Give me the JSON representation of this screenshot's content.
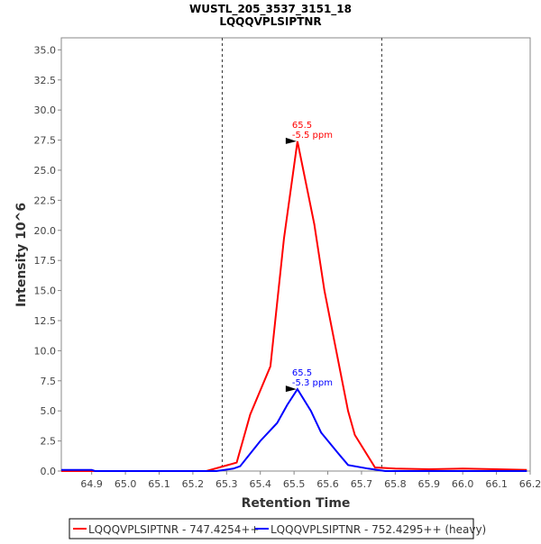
{
  "chart_data": {
    "type": "line",
    "title": "WUSTL_205_3537_3151_18",
    "subtitle": "LQQQVPLSIPTNR",
    "xlabel": "Retention Time",
    "ylabel": "Intensity 10^6",
    "xlim": [
      64.81,
      66.2
    ],
    "ylim": [
      0,
      36
    ],
    "xticks": [
      "64.9",
      "65.0",
      "65.1",
      "65.2",
      "65.3",
      "65.4",
      "65.5",
      "65.6",
      "65.7",
      "65.8",
      "65.9",
      "66.0",
      "66.1",
      "66.2"
    ],
    "yticks": [
      "0.0",
      "2.5",
      "5.0",
      "7.5",
      "10.0",
      "12.5",
      "15.0",
      "17.5",
      "20.0",
      "22.5",
      "25.0",
      "27.5",
      "30.0",
      "32.5",
      "35.0"
    ],
    "grid": false,
    "legend_position": "bottom",
    "boundaries": [
      65.287,
      65.76
    ],
    "series": [
      {
        "name": "LQQQVPLSIPTNR - 747.4254++",
        "color": "#ff0000",
        "x": [
          64.81,
          65.2,
          65.24,
          65.33,
          65.37,
          65.43,
          65.47,
          65.51,
          65.56,
          65.59,
          65.66,
          65.68,
          65.74,
          65.8,
          65.9,
          66.0,
          66.1,
          66.19
        ],
        "y": [
          0,
          0,
          0,
          0.7,
          4.7,
          8.7,
          19.3,
          27.4,
          20.5,
          15,
          5,
          3,
          0.3,
          0.2,
          0.15,
          0.2,
          0.15,
          0.1
        ],
        "annotation": {
          "x": 65.51,
          "y": 27.4,
          "rt": "65.5",
          "ppm": "-5.5 ppm"
        }
      },
      {
        "name": "LQQQVPLSIPTNR - 752.4295++ (heavy)",
        "color": "#0000ff",
        "x": [
          64.81,
          64.9,
          64.91,
          65.27,
          65.32,
          65.34,
          65.4,
          65.45,
          65.48,
          65.51,
          65.55,
          65.58,
          65.63,
          65.66,
          65.72,
          65.77,
          66.19
        ],
        "y": [
          0.1,
          0.1,
          0,
          0,
          0.2,
          0.4,
          2.5,
          4.0,
          5.5,
          6.8,
          5.0,
          3.2,
          1.5,
          0.5,
          0.2,
          0,
          0
        ],
        "annotation": {
          "x": 65.51,
          "y": 6.8,
          "rt": "65.5",
          "ppm": "-5.3 ppm"
        }
      }
    ]
  }
}
